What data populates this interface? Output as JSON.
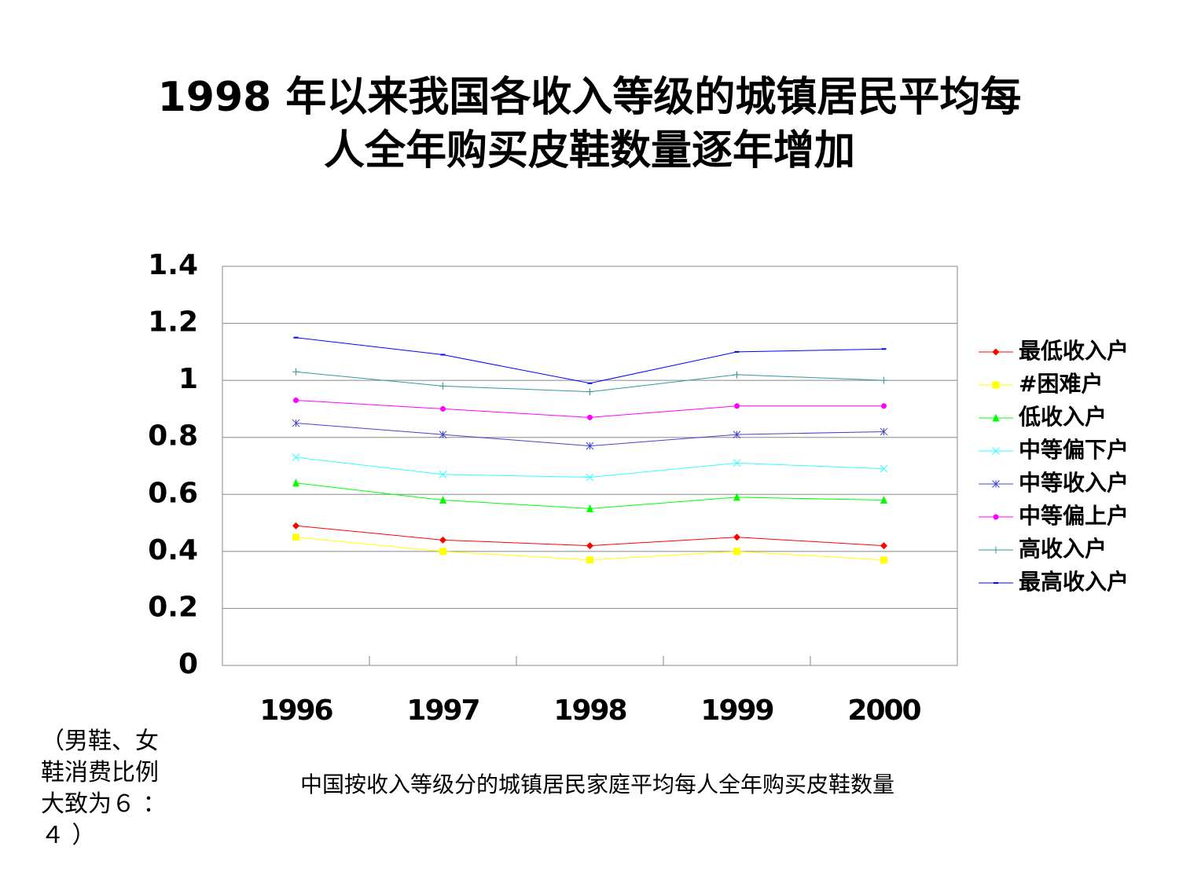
{
  "chart_data": {
    "type": "line",
    "title": [
      "1998 年以来我国各收入等级的城镇居民平均每",
      "人全年购买皮鞋数量逐年增加"
    ],
    "categories": [
      "1996",
      "1997",
      "1998",
      "1999",
      "2000"
    ],
    "series": [
      {
        "name": "最低收入户",
        "color": "#ff0000",
        "marker": "diamond",
        "values": [
          0.49,
          0.44,
          0.42,
          0.45,
          0.42
        ]
      },
      {
        "name": "#困难户",
        "color": "#ffff00",
        "marker": "square",
        "values": [
          0.45,
          0.4,
          0.37,
          0.4,
          0.37
        ]
      },
      {
        "name": "低收入户",
        "color": "#00ff00",
        "marker": "triangle",
        "values": [
          0.64,
          0.58,
          0.55,
          0.59,
          0.58
        ]
      },
      {
        "name": "中等偏下户",
        "color": "#33ffff",
        "marker": "x",
        "values": [
          0.73,
          0.67,
          0.66,
          0.71,
          0.69
        ]
      },
      {
        "name": "中等收入户",
        "color": "#4444cc",
        "marker": "star",
        "values": [
          0.85,
          0.81,
          0.77,
          0.81,
          0.82
        ]
      },
      {
        "name": "中等偏上户",
        "color": "#ff00ff",
        "marker": "circle",
        "values": [
          0.93,
          0.9,
          0.87,
          0.91,
          0.91
        ]
      },
      {
        "name": "高收入户",
        "color": "#339999",
        "marker": "plus",
        "values": [
          1.03,
          0.98,
          0.96,
          1.02,
          1.0
        ]
      },
      {
        "name": "最高收入户",
        "color": "#0000ff",
        "marker": "dash",
        "values": [
          1.15,
          1.09,
          0.99,
          1.1,
          1.11
        ]
      }
    ],
    "ylim": [
      0,
      1.4
    ],
    "yticks": [
      0,
      0.2,
      0.4,
      0.6,
      0.8,
      1,
      1.2,
      1.4
    ],
    "grid": true,
    "legend": "right",
    "caption": "中国按收入等级分的城镇居民家庭平均每人全年购买皮鞋数量",
    "note": [
      "（男鞋、女",
      "鞋消费比例",
      "大致为６ ：",
      "４ ）"
    ]
  }
}
